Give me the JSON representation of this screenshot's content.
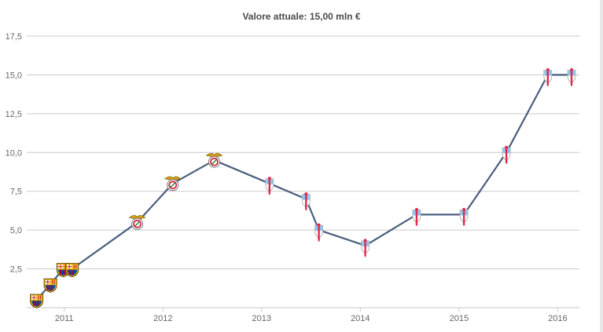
{
  "chart_data": {
    "type": "line",
    "title": "Valore attuale: 15,00 mln €",
    "xlabel": "",
    "ylabel": "",
    "ylim": [
      0,
      17.5
    ],
    "xlim": [
      2010.62,
      2016.22
    ],
    "y_ticks": [
      "17,5",
      "15,0",
      "12,5",
      "10,0",
      "7,5",
      "5,0",
      "2,5"
    ],
    "x_ticks": [
      "2011",
      "2012",
      "2013",
      "2014",
      "2015",
      "2016"
    ],
    "grid": true,
    "legend": "none",
    "line_color": "#4a5f7e",
    "series": [
      {
        "points": [
          {
            "x": 2010.72,
            "y": 0.5,
            "club": "barcelona"
          },
          {
            "x": 2010.86,
            "y": 1.5,
            "club": "barcelona"
          },
          {
            "x": 2010.99,
            "y": 2.5,
            "club": "barcelona"
          },
          {
            "x": 2011.08,
            "y": 2.5,
            "club": "barcelona"
          },
          {
            "x": 2011.74,
            "y": 5.5,
            "club": "benfica"
          },
          {
            "x": 2012.1,
            "y": 8.0,
            "club": "benfica"
          },
          {
            "x": 2012.52,
            "y": 9.5,
            "club": "benfica"
          },
          {
            "x": 2013.08,
            "y": 8.0,
            "club": "celta"
          },
          {
            "x": 2013.45,
            "y": 7.0,
            "club": "celta"
          },
          {
            "x": 2013.58,
            "y": 5.0,
            "club": "celta"
          },
          {
            "x": 2014.05,
            "y": 4.0,
            "club": "celta"
          },
          {
            "x": 2014.57,
            "y": 6.0,
            "club": "celta"
          },
          {
            "x": 2015.05,
            "y": 6.0,
            "club": "celta"
          },
          {
            "x": 2015.48,
            "y": 10.0,
            "club": "celta"
          },
          {
            "x": 2015.9,
            "y": 15.0,
            "club": "celta"
          },
          {
            "x": 2016.14,
            "y": 15.0,
            "club": "celta"
          }
        ]
      }
    ],
    "club_icons": {
      "barcelona": {
        "icon": "barcelona-crest-icon",
        "primary": "#a50044",
        "secondary": "#004d98",
        "accent": "#edbb00"
      },
      "benfica": {
        "icon": "benfica-crest-icon",
        "primary": "#c8102e",
        "secondary": "#ffffff",
        "accent": "#d4a017"
      },
      "celta": {
        "icon": "celta-crest-icon",
        "primary": "#8ac3ee",
        "secondary": "#e5254b",
        "accent": "#ffffff"
      }
    }
  }
}
